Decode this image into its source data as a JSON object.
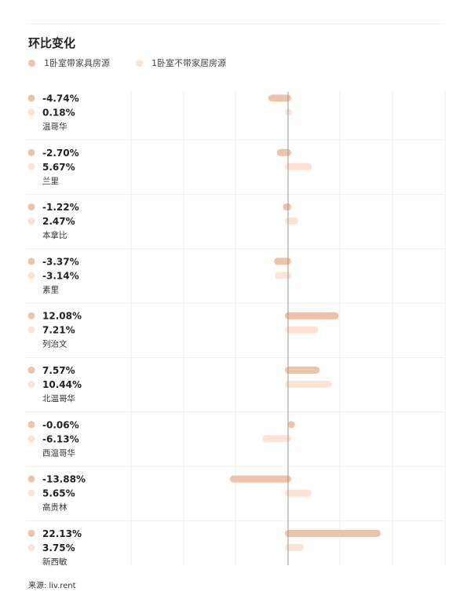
{
  "title": "环比变化",
  "legend": {
    "series1_label": "1卧室带家具房源",
    "series2_label": "1卧室不带家居房源"
  },
  "colors": {
    "series1": "#efc2aa",
    "series2": "#fde3d6",
    "axis": "#999999",
    "grid": "#ececec",
    "divider": "#efefef"
  },
  "source": {
    "label": "来源:",
    "value": "liv.rent"
  },
  "chart_data": {
    "type": "bar",
    "orientation": "horizontal",
    "title": "环比变化",
    "categories": [
      "温哥华",
      "兰里",
      "本拿比",
      "素里",
      "列治文",
      "北温哥华",
      "西温哥华",
      "高贵林",
      "新西敏"
    ],
    "series": [
      {
        "name": "1卧室带家具房源",
        "values": [
          -4.74,
          -2.7,
          -1.22,
          -3.37,
          12.08,
          7.57,
          -0.06,
          -13.88,
          22.13
        ],
        "labels": [
          "-4.74%",
          "-2.70%",
          "-1.22%",
          "-3.37%",
          "12.08%",
          "7.57%",
          "-0.06%",
          "-13.88%",
          "22.13%"
        ]
      },
      {
        "name": "1卧室不带家居房源",
        "values": [
          0.18,
          5.67,
          2.47,
          -3.14,
          7.21,
          10.44,
          -6.13,
          5.65,
          3.75
        ],
        "labels": [
          "0.18%",
          "5.67%",
          "2.47%",
          "-3.14%",
          "7.21%",
          "10.44%",
          "-6.13%",
          "5.65%",
          "3.75%"
        ]
      }
    ],
    "xlim": [
      -25,
      25
    ],
    "unit": "%"
  }
}
